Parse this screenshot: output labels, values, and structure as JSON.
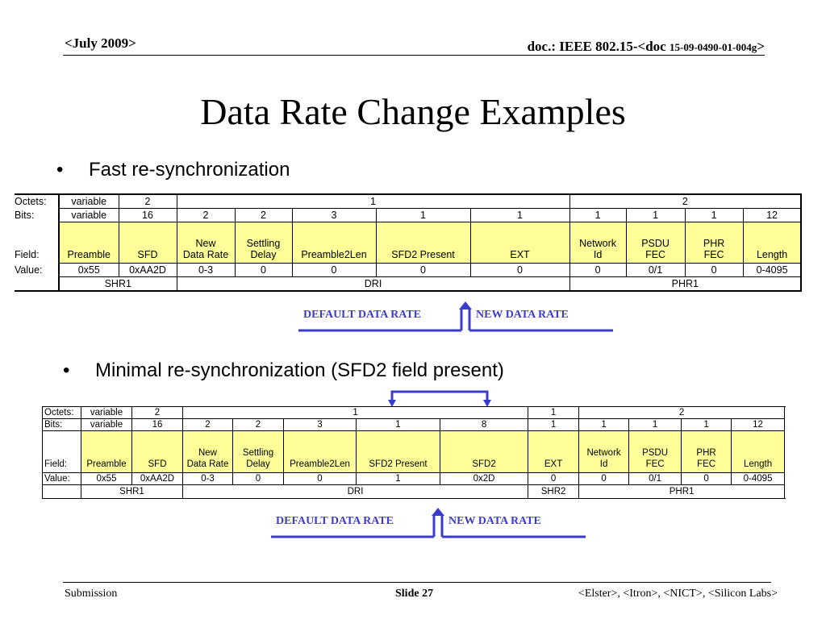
{
  "header": {
    "date": "<July 2009>",
    "doc_prefix": "doc.: IEEE 802.15-<doc",
    "doc_number": "15-09-0490-01-004g",
    "doc_suffix": ">"
  },
  "title": "Data Rate Change Examples",
  "bullets": [
    "Fast re-synchronization",
    "Minimal re-synchronization (SFD2 field present)"
  ],
  "table1": {
    "row_labels": [
      "Octets:",
      "Bits:",
      "Field:",
      "Value:"
    ],
    "octets": [
      "variable",
      "2",
      "1",
      "2"
    ],
    "bits": [
      "variable",
      "16",
      "2",
      "2",
      "3",
      "1",
      "1",
      "1",
      "1",
      "1",
      "12"
    ],
    "fields": [
      "Preamble",
      "SFD",
      "New\nData Rate",
      "Settling\nDelay",
      "Preamble2Len",
      "SFD2 Present",
      "EXT",
      "Network\nId",
      "PSDU\nFEC",
      "PHR\nFEC",
      "Length"
    ],
    "values": [
      "0x55",
      "0xAA2D",
      "0-3",
      "0",
      "0",
      "0",
      "0",
      "0",
      "0/1",
      "0",
      "0-4095"
    ],
    "groups": [
      "SHR1",
      "DRI",
      "PHR1"
    ]
  },
  "table2": {
    "row_labels": [
      "Octets:",
      "Bits:",
      "Field:",
      "Value:"
    ],
    "octets": [
      "variable",
      "2",
      "1",
      "1",
      "2"
    ],
    "bits": [
      "variable",
      "16",
      "2",
      "2",
      "3",
      "1",
      "8",
      "1",
      "1",
      "1",
      "1",
      "12"
    ],
    "fields": [
      "Preamble",
      "SFD",
      "New\nData Rate",
      "Settling\nDelay",
      "Preamble2Len",
      "SFD2 Present",
      "SFD2",
      "EXT",
      "Network\nId",
      "PSDU\nFEC",
      "PHR\nFEC",
      "Length"
    ],
    "values": [
      "0x55",
      "0xAA2D",
      "0-3",
      "0",
      "0",
      "1",
      "0x2D",
      "0",
      "0",
      "0/1",
      "0",
      "0-4095"
    ],
    "groups": [
      "SHR1",
      "DRI",
      "SHR2",
      "PHR1"
    ]
  },
  "rate_labels": {
    "default": "DEFAULT DATA RATE",
    "new": "NEW DATA RATE"
  },
  "colors": {
    "arrow": "#3c3ccc",
    "field_fill": "#ffff99"
  },
  "footer": {
    "left": "Submission",
    "slide": "Slide 27",
    "right": "<Elster>, <Itron>, <NICT>, <Silicon Labs>"
  }
}
